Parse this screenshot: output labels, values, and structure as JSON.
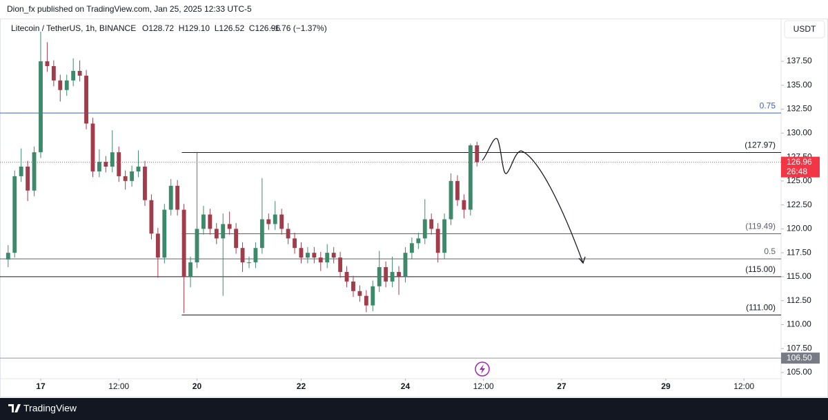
{
  "attribution": "Dion_fx published on TradingView.com, Jan 25, 2025 12:33 UTC-5",
  "brand": "TradingView",
  "chart_data": {
    "type": "candlestick",
    "title": "Litecoin / TetherUS, 1h, BINANCE",
    "ohlc": "O128.72  H129.10  L126.52  C126.96",
    "change": "−1.76 (−1.37%)",
    "currency": "USDT",
    "up_color": "#3d8a6a",
    "down_color": "#a13c4b",
    "ylim": [
      104.35,
      141.89
    ],
    "yticks": [
      {
        "value": 105,
        "label": "105.00"
      },
      {
        "value": 107.5,
        "label": "107.50"
      },
      {
        "value": 110,
        "label": "110.00"
      },
      {
        "value": 112.5,
        "label": "112.50"
      },
      {
        "value": 115,
        "label": "115.00"
      },
      {
        "value": 117.5,
        "label": "117.50"
      },
      {
        "value": 120,
        "label": "120.00"
      },
      {
        "value": 122.5,
        "label": "122.50"
      },
      {
        "value": 125,
        "label": "125.00"
      },
      {
        "value": 127.5,
        "label": "127.50"
      },
      {
        "value": 130,
        "label": "130.00"
      },
      {
        "value": 132.5,
        "label": "132.50"
      },
      {
        "value": 135,
        "label": "135.00"
      },
      {
        "value": 137.5,
        "label": "137.50"
      }
    ],
    "xlim": [
      -18.75,
      341.1
    ],
    "xticks": [
      {
        "value": 0,
        "label": "17"
      },
      {
        "value": 36,
        "label": "12:00"
      },
      {
        "value": 72,
        "label": "20"
      },
      {
        "value": 120,
        "label": "22"
      },
      {
        "value": 168,
        "label": "24"
      },
      {
        "value": 204,
        "label": "12:00"
      },
      {
        "value": 240,
        "label": "27"
      },
      {
        "value": 288,
        "label": "29"
      },
      {
        "value": 324,
        "label": "12:00"
      }
    ],
    "x": [
      -15,
      -12,
      -9,
      -6,
      -3,
      0,
      3,
      6,
      9,
      12,
      15,
      18,
      21,
      24,
      27,
      30,
      33,
      36,
      39,
      42,
      45,
      48,
      51,
      54,
      57,
      60,
      63,
      66,
      69,
      72,
      75,
      78,
      81,
      84,
      87,
      90,
      93,
      96,
      99,
      102,
      105,
      108,
      111,
      114,
      117,
      120,
      123,
      126,
      129,
      132,
      135,
      138,
      141,
      144,
      147,
      150,
      153,
      156,
      159,
      162,
      165,
      168,
      171,
      174,
      177,
      180,
      183,
      186,
      189,
      192,
      195,
      198,
      201
    ],
    "candles": [
      [
        116.8,
        118.3,
        116.0,
        117.5
      ],
      [
        117.5,
        126.1,
        117.0,
        125.5
      ],
      [
        125.5,
        128.4,
        124.9,
        126.5
      ],
      [
        126.5,
        127.1,
        122.9,
        124
      ],
      [
        124,
        128.6,
        123.4,
        128
      ],
      [
        128,
        140.6,
        127.4,
        137.5
      ],
      [
        137.5,
        139.5,
        136.4,
        137
      ],
      [
        137,
        137.6,
        134.9,
        135.5
      ],
      [
        135.5,
        136.1,
        133.3,
        134.5
      ],
      [
        134.5,
        136.1,
        133.9,
        135.5
      ],
      [
        135.5,
        137.8,
        134.9,
        136.5
      ],
      [
        136.5,
        137.6,
        135.4,
        136
      ],
      [
        136,
        136.6,
        130.4,
        131
      ],
      [
        131,
        131.6,
        125.4,
        126
      ],
      [
        126,
        128.3,
        125.4,
        127
      ],
      [
        127,
        127.6,
        125.9,
        126.5
      ],
      [
        126.5,
        130.3,
        125.9,
        128
      ],
      [
        128,
        128.6,
        124.9,
        125.5
      ],
      [
        125.5,
        126.1,
        124.1,
        125
      ],
      [
        125,
        126.6,
        124.4,
        126
      ],
      [
        126,
        128.2,
        125.4,
        126.5
      ],
      [
        126.5,
        127.1,
        122.4,
        123
      ],
      [
        123,
        123.6,
        118.9,
        119.5
      ],
      [
        119.5,
        120.1,
        114.9,
        117
      ],
      [
        117,
        122.6,
        116.4,
        122
      ],
      [
        122,
        125.2,
        121.4,
        124.5
      ],
      [
        124.5,
        125.1,
        121.4,
        122
      ],
      [
        122,
        122.6,
        111.2,
        115
      ],
      [
        115,
        117.1,
        113.9,
        116.5
      ],
      [
        116.5,
        127.97,
        115.9,
        120
      ],
      [
        120,
        122.4,
        119.4,
        121.5
      ],
      [
        121.5,
        122.1,
        119.4,
        120
      ],
      [
        120,
        120.6,
        118.4,
        119
      ],
      [
        119,
        121.6,
        113,
        120.5
      ],
      [
        120.5,
        121.8,
        119.4,
        120
      ],
      [
        120,
        120.6,
        117.4,
        118
      ],
      [
        118,
        118.6,
        115.5,
        116.5
      ],
      [
        116.5,
        117.1,
        115.9,
        116.5
      ],
      [
        116.5,
        118.6,
        115.9,
        118
      ],
      [
        118,
        125.3,
        117.4,
        121
      ],
      [
        121,
        121.6,
        119.9,
        120.5
      ],
      [
        120.5,
        122.9,
        119.9,
        121.5
      ],
      [
        121.5,
        122.1,
        119.4,
        120
      ],
      [
        120,
        120.6,
        118.4,
        119
      ],
      [
        119,
        119.6,
        117.4,
        118
      ],
      [
        118,
        118.6,
        116.4,
        117
      ],
      [
        117,
        118.1,
        116.4,
        117.5
      ],
      [
        117.5,
        118.1,
        116.4,
        117
      ],
      [
        117,
        117.6,
        115.6,
        116.5
      ],
      [
        116.5,
        118.4,
        115.9,
        117.5
      ],
      [
        117.5,
        118.1,
        116.4,
        117
      ],
      [
        117,
        117.6,
        114.9,
        115.5
      ],
      [
        115.5,
        116.1,
        113.9,
        114.5
      ],
      [
        114.5,
        115.1,
        112.9,
        113.5
      ],
      [
        113.5,
        114.1,
        112.4,
        113
      ],
      [
        113,
        113.6,
        111.3,
        112
      ],
      [
        112,
        114.6,
        111.4,
        114
      ],
      [
        114,
        117.7,
        113.4,
        116
      ],
      [
        116,
        116.6,
        113.9,
        114.5
      ],
      [
        114.5,
        117.1,
        113.9,
        115.5
      ],
      [
        115.5,
        116.1,
        113.1,
        115
      ],
      [
        115,
        118.1,
        114.4,
        117.5
      ],
      [
        117.5,
        119.1,
        116.9,
        118.5
      ],
      [
        118.5,
        119.6,
        117.9,
        119
      ],
      [
        119,
        123.1,
        118.4,
        121
      ],
      [
        121,
        121.6,
        119.4,
        120
      ],
      [
        120,
        120.6,
        116.5,
        117.5
      ],
      [
        117.5,
        121.6,
        116.9,
        121
      ],
      [
        121,
        125.8,
        120.4,
        125
      ],
      [
        125,
        125.6,
        122.4,
        123
      ],
      [
        123,
        123.6,
        121.1,
        122
      ],
      [
        122,
        128.9,
        121.4,
        128.72
      ],
      [
        128.72,
        129.1,
        126.52,
        126.96
      ]
    ],
    "levels": [
      {
        "value": 132.1,
        "label": "0.75",
        "color": "#3b5fc9"
      },
      {
        "value": 127.97,
        "label": "(127.97)",
        "color": "#131722",
        "from": 65
      },
      {
        "value": 119.49,
        "label": "(119.49)",
        "color": "#5d606b",
        "from": 65
      },
      {
        "value": 116.86,
        "label": "0.5",
        "color": "#5d606b"
      },
      {
        "value": 115,
        "label": "(115.00)",
        "color": "#131722"
      },
      {
        "value": 111,
        "label": "(111.00)",
        "color": "#131722",
        "from": 65
      }
    ],
    "marker_line": {
      "value": 106.5,
      "label": "106.50",
      "color": "#9598a1"
    },
    "last_price": {
      "value": 126.96,
      "countdown": "26:48",
      "color": "#f23645"
    }
  }
}
